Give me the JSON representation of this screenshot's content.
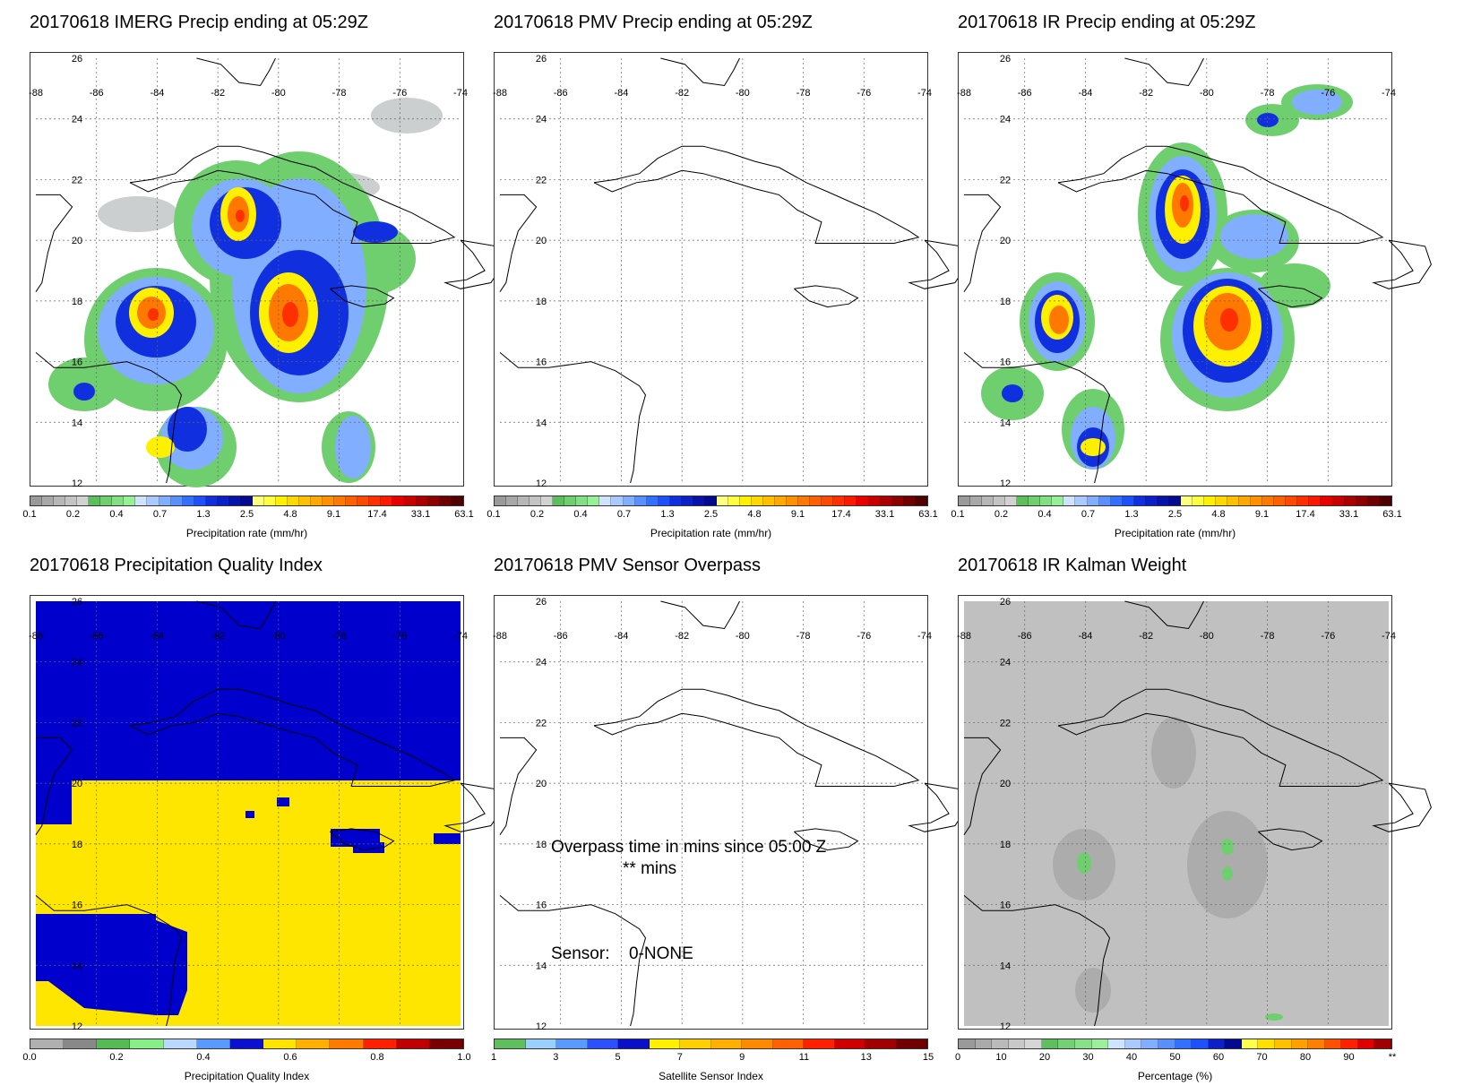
{
  "panels": [
    {
      "title": "20170618 IMERG Precip ending at 05:29Z",
      "colorbar_ticks": [
        "0.1",
        "0.2",
        "0.4",
        "0.7",
        "1.3",
        "2.5",
        "4.8",
        "9.1",
        "17.4",
        "33.1",
        "63.1"
      ],
      "colorbar_label": "Precipitation rate (mm/hr)"
    },
    {
      "title": "20170618 PMV Precip ending at 05:29Z",
      "colorbar_ticks": [
        "0.1",
        "0.2",
        "0.4",
        "0.7",
        "1.3",
        "2.5",
        "4.8",
        "9.1",
        "17.4",
        "33.1",
        "63.1"
      ],
      "colorbar_label": "Precipitation rate (mm/hr)"
    },
    {
      "title": "20170618 IR Precip ending at 05:29Z",
      "colorbar_ticks": [
        "0.1",
        "0.2",
        "0.4",
        "0.7",
        "1.3",
        "2.5",
        "4.8",
        "9.1",
        "17.4",
        "33.1",
        "63.1"
      ],
      "colorbar_label": "Precipitation rate (mm/hr)"
    },
    {
      "title": "20170618 Precipitation Quality Index",
      "colorbar_ticks": [
        "0.0",
        "0.2",
        "0.4",
        "0.6",
        "0.8",
        "1.0"
      ],
      "colorbar_label": "Precipitation Quality Index"
    },
    {
      "title": "20170618 PMV Sensor Overpass",
      "colorbar_ticks": [
        "1",
        "3",
        "5",
        "7",
        "9",
        "11",
        "13",
        "15"
      ],
      "colorbar_label": "Satellite Sensor Index",
      "overpass_text": "Overpass time in mins since 05:00 Z",
      "overpass_value": "** mins",
      "sensor_label": "Sensor:",
      "sensor_value": "0-NONE"
    },
    {
      "title": "20170618 IR Kalman Weight",
      "colorbar_ticks": [
        "0",
        "10",
        "20",
        "30",
        "40",
        "50",
        "60",
        "70",
        "80",
        "90",
        "**"
      ],
      "colorbar_label": "Percentage (%)"
    }
  ],
  "map": {
    "lon_labels": [
      "-88",
      "-86",
      "-84",
      "-82",
      "-80",
      "-78",
      "-76",
      "-74"
    ],
    "lat_labels": [
      "26",
      "24",
      "22",
      "20",
      "18",
      "16",
      "14",
      "12"
    ]
  },
  "colors": {
    "precip_scale": [
      "#9a9a9a",
      "#a8a8a8",
      "#b6b6b6",
      "#c4c4c4",
      "#d2d2d2",
      "#5bbf5b",
      "#6fcf6f",
      "#83df83",
      "#97ef97",
      "#cfe3ff",
      "#a9c9ff",
      "#82aeff",
      "#5a8fff",
      "#3470ff",
      "#1f50ff",
      "#1030e0",
      "#0b20c8",
      "#0712a8",
      "#040a90",
      "#ffff80",
      "#ffff40",
      "#fff000",
      "#ffd800",
      "#ffc000",
      "#ffa800",
      "#ff9000",
      "#ff7800",
      "#ff6000",
      "#ff4800",
      "#ff3000",
      "#ff1800",
      "#e60000",
      "#c80000",
      "#aa0000",
      "#8c0000",
      "#6e0000",
      "#500000"
    ],
    "pqi_scale": [
      "#b0b0b0",
      "#888888",
      "#55bb55",
      "#88ee88",
      "#b8d8ff",
      "#5a9aff",
      "#0a10d0",
      "#ffe400",
      "#ffb000",
      "#ff7a00",
      "#ff2000",
      "#c00000",
      "#7a0000"
    ],
    "sensor_scale": [
      "#5fbf5f",
      "#9ad0ff",
      "#5a9aff",
      "#2a50ff",
      "#0a10c8",
      "#fff000",
      "#ffd000",
      "#ffb000",
      "#ff8a00",
      "#ff6000",
      "#ff2000",
      "#d00000",
      "#a00000",
      "#700000"
    ],
    "kalman_scale": [
      "#9a9a9a",
      "#aaaaaa",
      "#bababa",
      "#c8c8c8",
      "#d6d6d6",
      "#5fbf5f",
      "#74d074",
      "#88e088",
      "#9cf09c",
      "#cfe3ff",
      "#a9c9ff",
      "#82aeff",
      "#5a8fff",
      "#3470ff",
      "#1f50ff",
      "#0b20c8",
      "#040a90",
      "#ffff50",
      "#ffe000",
      "#ffc000",
      "#ffa000",
      "#ff8000",
      "#ff5000",
      "#ff2000",
      "#e00000",
      "#a00000"
    ],
    "pqi_high": "#0000cc",
    "pqi_low": "#ffe600",
    "kalman_bg": "#c0c0c0"
  }
}
